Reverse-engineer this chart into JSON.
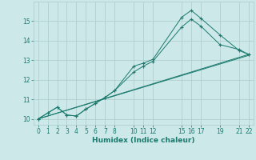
{
  "xlabel": "Humidex (Indice chaleur)",
  "background_color": "#cce8e8",
  "grid_color": "#aacccc",
  "line_color": "#1a7a6e",
  "xlim": [
    -0.5,
    22.5
  ],
  "ylim": [
    9.7,
    16.0
  ],
  "xticks": [
    0,
    1,
    2,
    3,
    4,
    5,
    6,
    7,
    8,
    10,
    11,
    12,
    15,
    16,
    17,
    19,
    21,
    22
  ],
  "yticks": [
    10,
    11,
    12,
    13,
    14,
    15
  ],
  "series": [
    {
      "x": [
        0,
        1,
        2,
        3,
        4,
        5,
        6,
        7,
        8,
        10,
        11,
        12,
        15,
        16,
        17,
        19,
        21,
        22
      ],
      "y": [
        10.0,
        10.3,
        10.6,
        10.2,
        10.15,
        10.5,
        10.8,
        11.1,
        11.45,
        12.7,
        12.85,
        13.05,
        15.2,
        15.55,
        15.15,
        14.3,
        13.5,
        13.3
      ],
      "marker": true
    },
    {
      "x": [
        0,
        1,
        2,
        3,
        4,
        5,
        6,
        7,
        8,
        10,
        11,
        12,
        15,
        16,
        17,
        19,
        21,
        22
      ],
      "y": [
        10.0,
        10.3,
        10.6,
        10.2,
        10.15,
        10.5,
        10.8,
        11.1,
        11.45,
        12.4,
        12.7,
        12.95,
        14.7,
        15.1,
        14.75,
        13.8,
        13.55,
        13.3
      ],
      "marker": true
    },
    {
      "x": [
        0,
        22
      ],
      "y": [
        10.0,
        13.3
      ],
      "marker": false
    },
    {
      "x": [
        0,
        22
      ],
      "y": [
        10.0,
        13.25
      ],
      "marker": false
    }
  ]
}
